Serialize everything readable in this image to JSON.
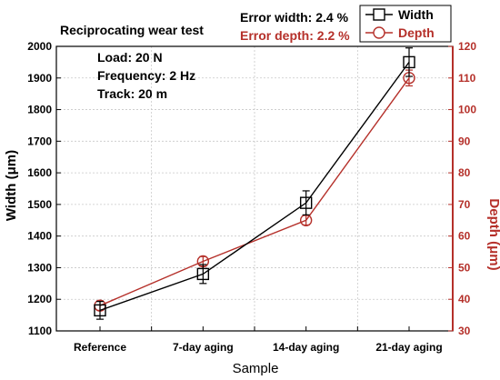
{
  "chart_data": {
    "type": "line",
    "title": "Reciprocating wear test",
    "xlabel": "Sample",
    "categories": [
      "Reference",
      "7-day  aging",
      "14-day  aging",
      "21-day  aging"
    ],
    "y_left": {
      "label": "Width (μm)",
      "range": [
        1100,
        2000
      ],
      "ticks": [
        1100,
        1200,
        1300,
        1400,
        1500,
        1600,
        1700,
        1800,
        1900,
        2000
      ]
    },
    "y_right": {
      "label": "Depth (μm)",
      "range": [
        30,
        120
      ],
      "ticks": [
        30,
        40,
        50,
        60,
        70,
        80,
        90,
        100,
        110,
        120
      ]
    },
    "series": [
      {
        "name": "Width",
        "axis": "left",
        "marker": "square",
        "color": "#000000",
        "values": [
          1165,
          1280,
          1505,
          1950
        ],
        "error": [
          28,
          30,
          38,
          45
        ]
      },
      {
        "name": "Depth",
        "axis": "right",
        "marker": "circle",
        "color": "#b5302a",
        "values": [
          38,
          52,
          65,
          110
        ],
        "error": [
          1.5,
          1.5,
          1.5,
          2.5
        ]
      }
    ],
    "annotations": {
      "conditions": [
        "Load: 20 N",
        "Frequency: 2 Hz",
        "Track: 20 m"
      ],
      "error_width": "Error width: 2.4 %",
      "error_depth": "Error depth: 2.2 %"
    },
    "grid": true,
    "legend": "top-right"
  }
}
